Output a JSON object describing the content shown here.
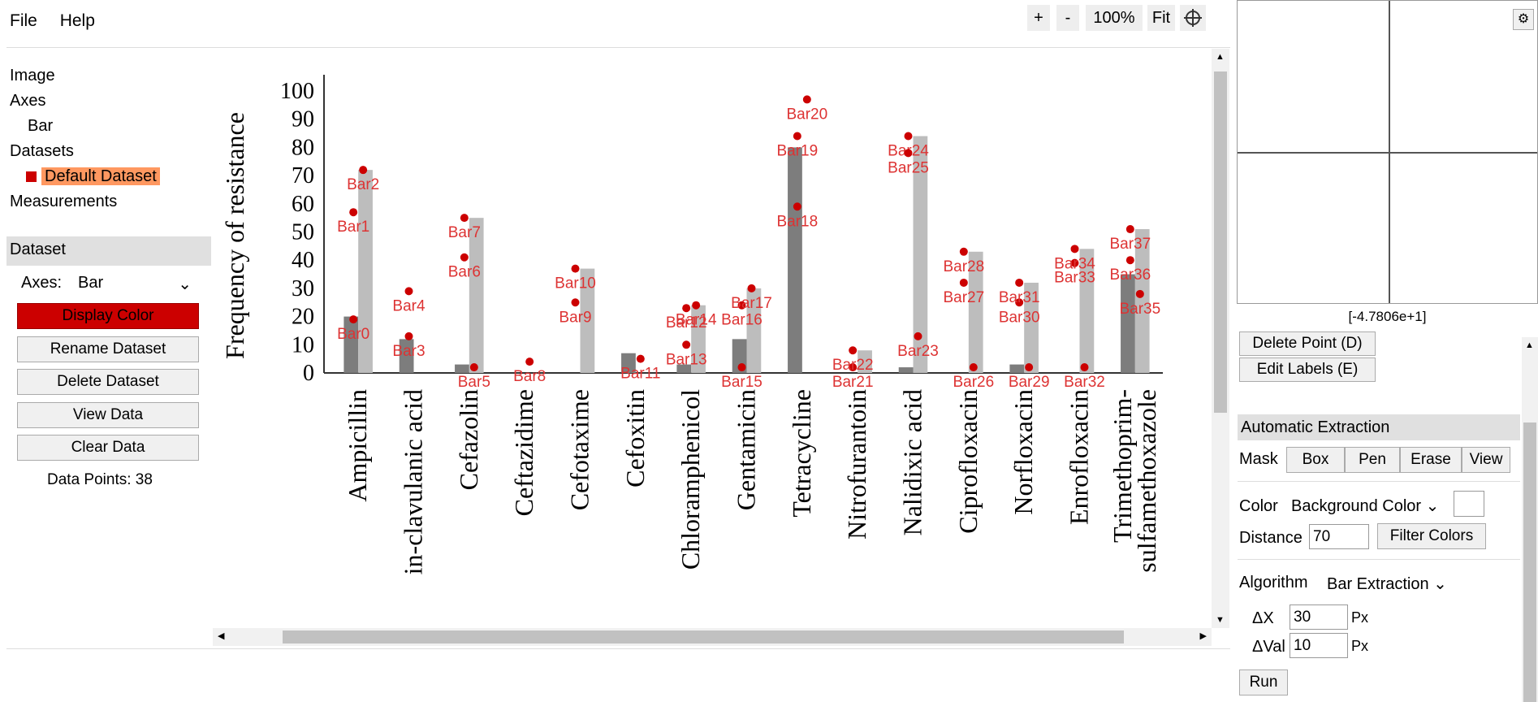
{
  "menu": {
    "file": "File",
    "help": "Help"
  },
  "toolbar": {
    "zoom_in": "+",
    "zoom_out": "-",
    "zoom_level": "100%",
    "fit": "Fit"
  },
  "tree": {
    "image": "Image",
    "axes": "Axes",
    "axes_child": "Bar",
    "datasets": "Datasets",
    "dataset_child": "Default Dataset",
    "measurements": "Measurements"
  },
  "dataset_panel": {
    "header": "Dataset",
    "axes_label": "Axes:",
    "axes_value": "Bar",
    "display_color": "Display Color",
    "rename": "Rename Dataset",
    "delete": "Delete Dataset",
    "view": "View Data",
    "clear": "Clear Data",
    "points_label": "Data Points:",
    "points_value": "38"
  },
  "colors": {
    "accent": "#cc0000",
    "selection": "#ff9860",
    "marker": "#cc0000"
  },
  "chart_data": {
    "type": "bar",
    "ylabel": "Frequency of resistance",
    "ylim": [
      0,
      100
    ],
    "yticks": [
      "0",
      "10",
      "20",
      "30",
      "40",
      "50",
      "60",
      "70",
      "80",
      "90",
      "100"
    ],
    "categories": [
      "Ampicillin",
      "Amoxicillin-clavulanic acid",
      "Cefazolin",
      "Ceftazidime",
      "Cefotaxime",
      "Cefoxitin",
      "Chloramphenicol",
      "Gentamicin",
      "Tetracycline",
      "Nitrofurantoin",
      "Nalidixic acid",
      "Ciprofloxacin",
      "Norfloxacin",
      "Enrofloxacin",
      "Trimethoprim-sulfamethoxazole"
    ],
    "tick_labels": [
      "Ampicillin",
      "in-clavulanic acid",
      "Cefazolin",
      "Ceftazidime",
      "Cefotaxime",
      "Cefoxitin",
      "Chloramphenicol",
      "Gentamicin",
      "Tetracycline",
      "Nitrofurantoin",
      "Nalidixic acid",
      "Ciprofloxacin",
      "Norfloxacin",
      "Enrofloxacin",
      "Trimethoprim-|sulfamethoxazole"
    ],
    "series": [
      {
        "values": [
          20,
          12,
          3,
          0,
          0,
          7,
          3,
          12,
          80,
          0,
          2,
          0,
          3,
          0,
          35
        ]
      },
      {
        "values": [
          72,
          0,
          55,
          0,
          37,
          0,
          24,
          30,
          0,
          8,
          84,
          43,
          32,
          44,
          51
        ]
      }
    ],
    "points": [
      {
        "label": "Bar0",
        "x": 0,
        "y": 19
      },
      {
        "label": "Bar1",
        "x": 0,
        "y": 57
      },
      {
        "label": "Bar2",
        "x": 0,
        "y": 72
      },
      {
        "label": "Bar3",
        "x": 1,
        "y": 13
      },
      {
        "label": "Bar4",
        "x": 1,
        "y": 29
      },
      {
        "label": "Bar5",
        "x": 2,
        "y": 2
      },
      {
        "label": "Bar6",
        "x": 2,
        "y": 41
      },
      {
        "label": "Bar7",
        "x": 2,
        "y": 55
      },
      {
        "label": "Bar8",
        "x": 3,
        "y": 4
      },
      {
        "label": "Bar9",
        "x": 4,
        "y": 25
      },
      {
        "label": "Bar10",
        "x": 4,
        "y": 37
      },
      {
        "label": "Bar11",
        "x": 5,
        "y": 5
      },
      {
        "label": "Bar12",
        "x": 6,
        "y": 23
      },
      {
        "label": "Bar13",
        "x": 6,
        "y": 10
      },
      {
        "label": "Bar14",
        "x": 6,
        "y": 24
      },
      {
        "label": "Bar15",
        "x": 7,
        "y": 2
      },
      {
        "label": "Bar16",
        "x": 7,
        "y": 24
      },
      {
        "label": "Bar17",
        "x": 7,
        "y": 30
      },
      {
        "label": "Bar18",
        "x": 8,
        "y": 59
      },
      {
        "label": "Bar19",
        "x": 8,
        "y": 84
      },
      {
        "label": "Bar20",
        "x": 8,
        "y": 97
      },
      {
        "label": "Bar21",
        "x": 9,
        "y": 2
      },
      {
        "label": "Bar22",
        "x": 9,
        "y": 8
      },
      {
        "label": "Bar23",
        "x": 10,
        "y": 13
      },
      {
        "label": "Bar24",
        "x": 10,
        "y": 84
      },
      {
        "label": "Bar25",
        "x": 10,
        "y": 78
      },
      {
        "label": "Bar26",
        "x": 11,
        "y": 2
      },
      {
        "label": "Bar27",
        "x": 11,
        "y": 32
      },
      {
        "label": "Bar28",
        "x": 11,
        "y": 43
      },
      {
        "label": "Bar29",
        "x": 12,
        "y": 2
      },
      {
        "label": "Bar30",
        "x": 12,
        "y": 25
      },
      {
        "label": "Bar31",
        "x": 12,
        "y": 32
      },
      {
        "label": "Bar32",
        "x": 13,
        "y": 2
      },
      {
        "label": "Bar33",
        "x": 13,
        "y": 39
      },
      {
        "label": "Bar34",
        "x": 13,
        "y": 44
      },
      {
        "label": "Bar35",
        "x": 14,
        "y": 28
      },
      {
        "label": "Bar36",
        "x": 14,
        "y": 40
      },
      {
        "label": "Bar37",
        "x": 14,
        "y": 51
      }
    ]
  },
  "zoom_panel": {
    "coord": "[-4.7806e+1]"
  },
  "point_tools": {
    "delete": "Delete Point (D)",
    "edit": "Edit Labels (E)"
  },
  "auto_extract": {
    "header": "Automatic Extraction",
    "mask_label": "Mask",
    "box": "Box",
    "pen": "Pen",
    "erase": "Erase",
    "view": "View",
    "color_label": "Color",
    "color_value": "Background Color",
    "distance_label": "Distance",
    "distance_value": "70",
    "filter": "Filter Colors",
    "algorithm_label": "Algorithm",
    "algorithm_value": "Bar Extraction",
    "dx_label": "ΔX",
    "dx_value": "30",
    "dval_label": "ΔVal",
    "dval_value": "10",
    "px": "Px",
    "run": "Run"
  }
}
